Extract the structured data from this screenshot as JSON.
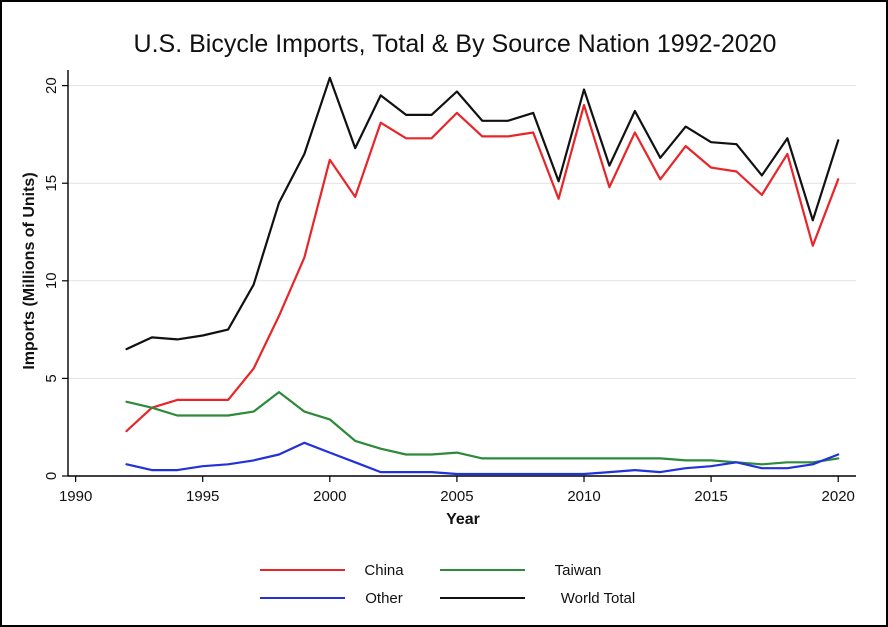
{
  "chart_data": {
    "type": "line",
    "title": "U.S. Bicycle Imports, Total & By Source Nation 1992-2020",
    "xlabel": "Year",
    "ylabel": "Imports (Millions of Units)",
    "xlim": [
      1989.7,
      2020.7
    ],
    "ylim": [
      0,
      20.8
    ],
    "xticks": [
      1990,
      1995,
      2000,
      2005,
      2010,
      2015,
      2020
    ],
    "yticks": [
      0,
      5,
      10,
      15,
      20
    ],
    "grid": true,
    "legend_position": "bottom",
    "x": [
      1992,
      1993,
      1994,
      1995,
      1996,
      1997,
      1998,
      1999,
      2000,
      2001,
      2002,
      2003,
      2004,
      2005,
      2006,
      2007,
      2008,
      2009,
      2010,
      2011,
      2012,
      2013,
      2014,
      2015,
      2016,
      2017,
      2018,
      2019,
      2020
    ],
    "series": [
      {
        "name": "China",
        "color": "#e8262a",
        "values": [
          2.3,
          3.5,
          3.9,
          3.9,
          3.9,
          5.5,
          8.2,
          11.2,
          16.2,
          14.3,
          18.1,
          17.3,
          17.3,
          18.6,
          17.4,
          17.4,
          17.6,
          14.2,
          19.0,
          14.8,
          17.6,
          15.2,
          16.9,
          15.8,
          15.6,
          14.4,
          16.5,
          11.8,
          15.2
        ]
      },
      {
        "name": "Taiwan",
        "color": "#2d8a3a",
        "values": [
          3.8,
          3.5,
          3.1,
          3.1,
          3.1,
          3.3,
          4.3,
          3.3,
          2.9,
          1.8,
          1.4,
          1.1,
          1.1,
          1.2,
          0.9,
          0.9,
          0.9,
          0.9,
          0.9,
          0.9,
          0.9,
          0.9,
          0.8,
          0.8,
          0.7,
          0.6,
          0.7,
          0.7,
          0.9
        ]
      },
      {
        "name": "Other",
        "color": "#2331d8",
        "values": [
          0.6,
          0.3,
          0.3,
          0.5,
          0.6,
          0.8,
          1.1,
          1.7,
          1.2,
          0.7,
          0.2,
          0.2,
          0.2,
          0.1,
          0.1,
          0.1,
          0.1,
          0.1,
          0.1,
          0.2,
          0.3,
          0.2,
          0.4,
          0.5,
          0.7,
          0.4,
          0.4,
          0.6,
          1.1
        ]
      },
      {
        "name": "World Total",
        "color": "#111111",
        "values": [
          6.5,
          7.1,
          7.0,
          7.2,
          7.5,
          9.8,
          14.0,
          16.5,
          20.4,
          16.8,
          19.5,
          18.5,
          18.5,
          19.7,
          18.2,
          18.2,
          18.6,
          15.1,
          19.8,
          15.9,
          18.7,
          16.3,
          17.9,
          17.1,
          17.0,
          15.4,
          17.3,
          13.1,
          17.2
        ]
      }
    ]
  }
}
